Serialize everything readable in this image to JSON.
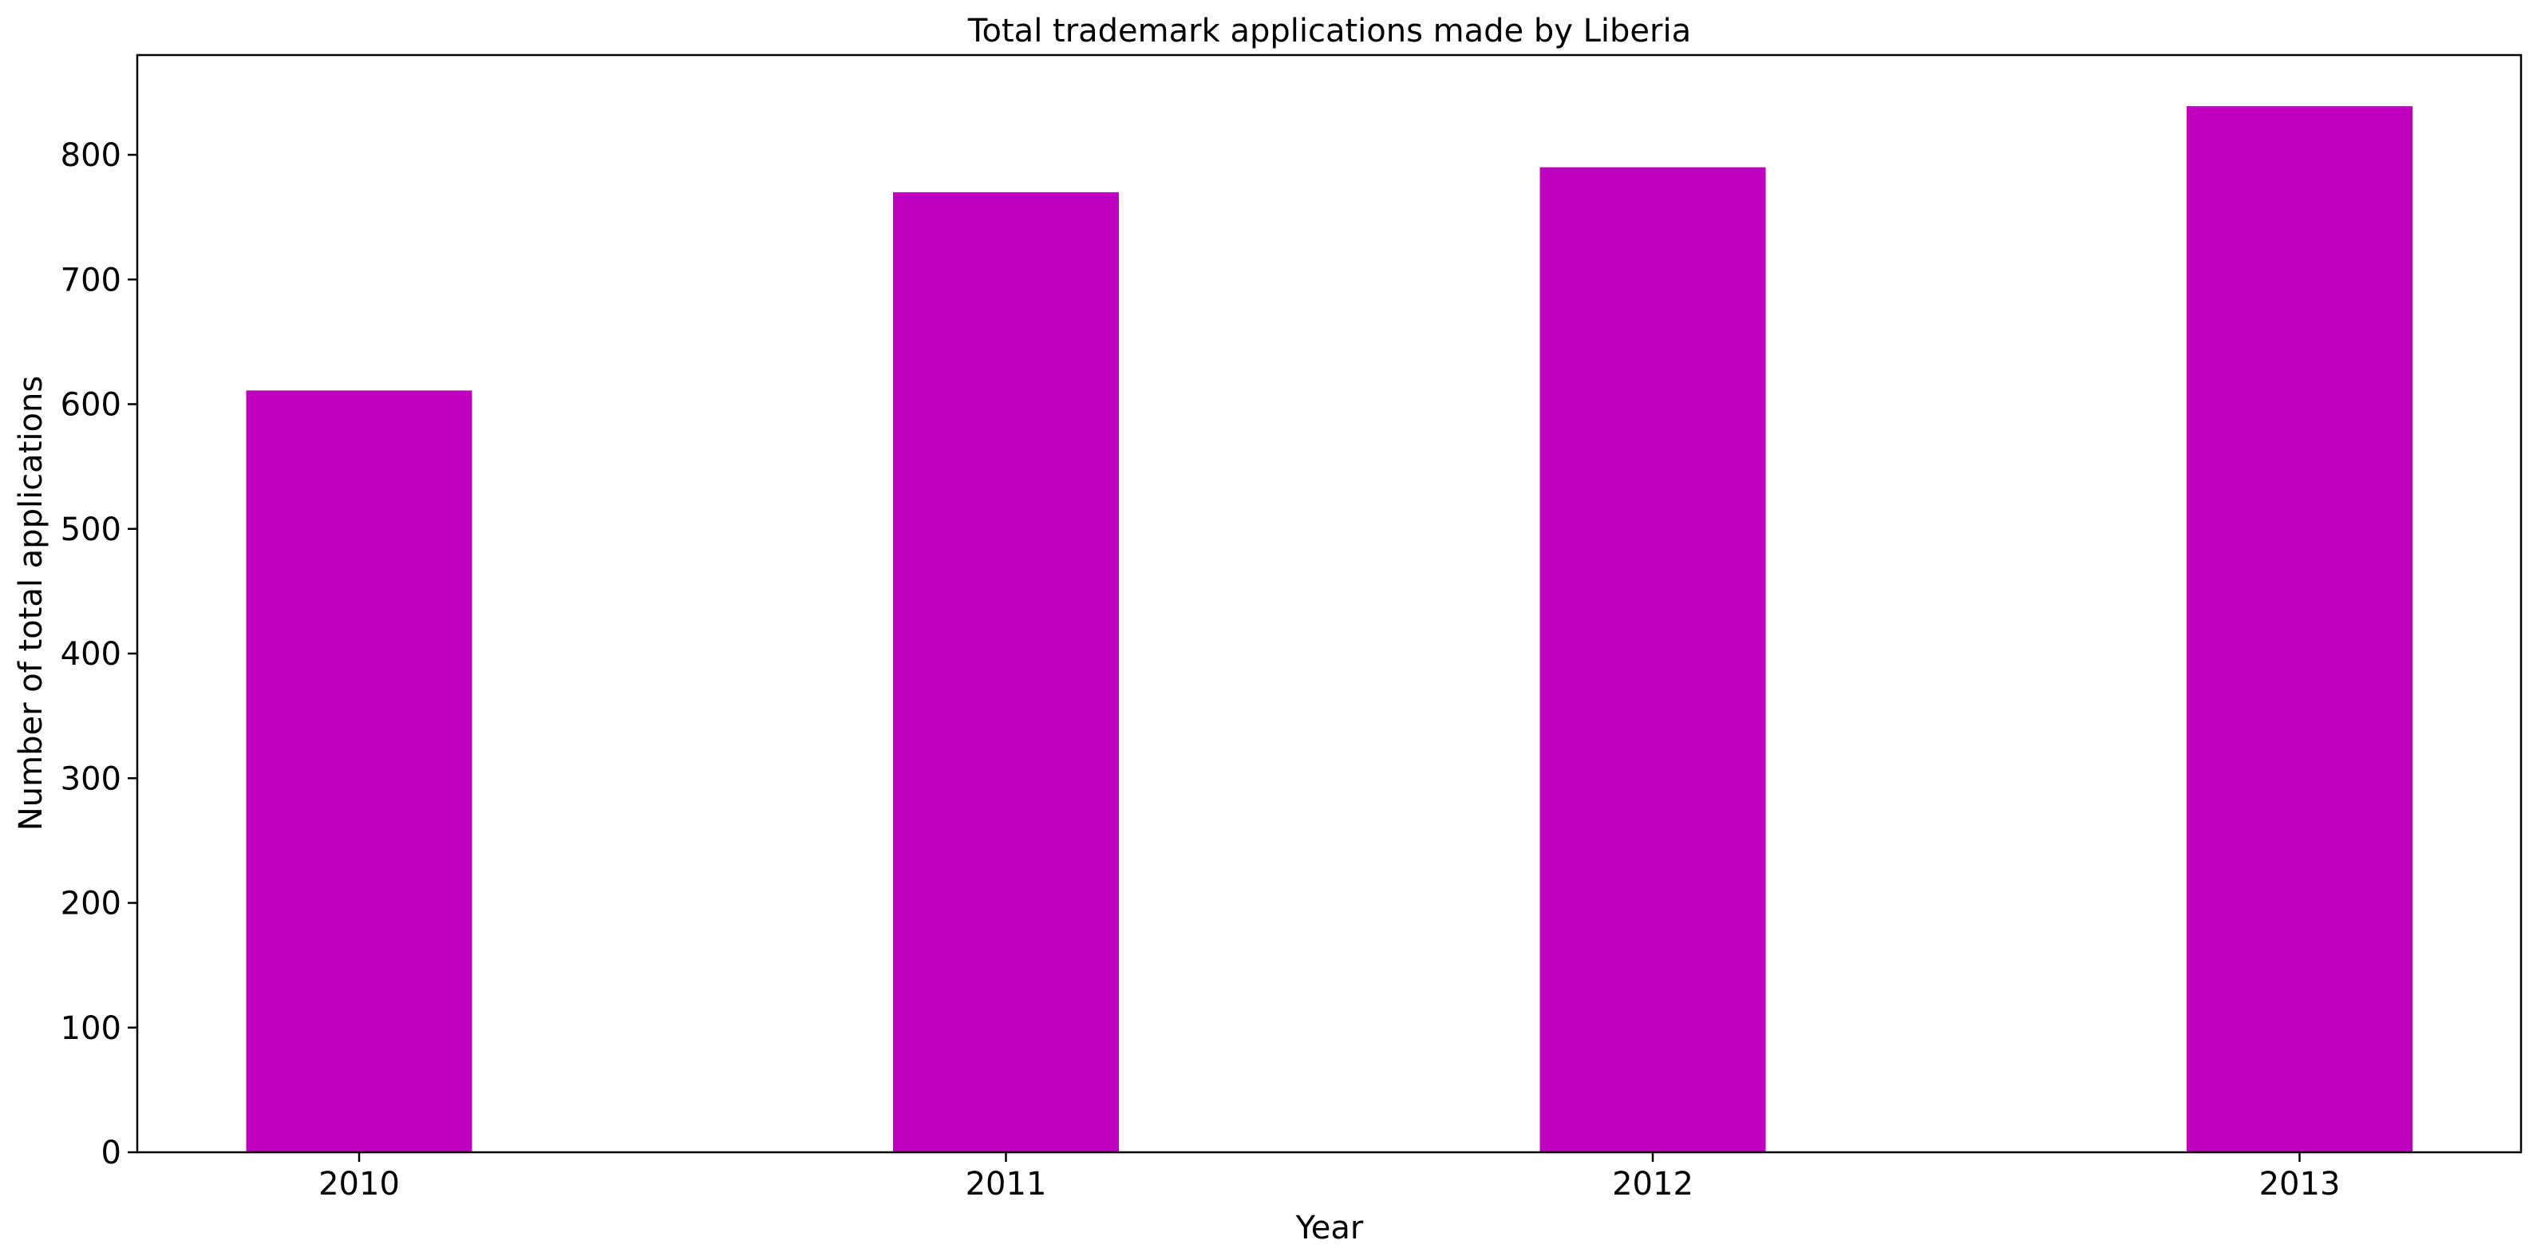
{
  "chart_data": {
    "type": "bar",
    "title": "Total trademark applications made by Liberia",
    "xlabel": "Year",
    "ylabel": "Number of total applications",
    "categories": [
      "2010",
      "2011",
      "2012",
      "2013"
    ],
    "values": [
      611,
      770,
      790,
      839
    ],
    "ylim": [
      0,
      880
    ],
    "yticks": [
      0,
      100,
      200,
      300,
      400,
      500,
      600,
      700,
      800
    ],
    "bar_color": "#bf00bf",
    "grid": false,
    "legend": "none"
  }
}
